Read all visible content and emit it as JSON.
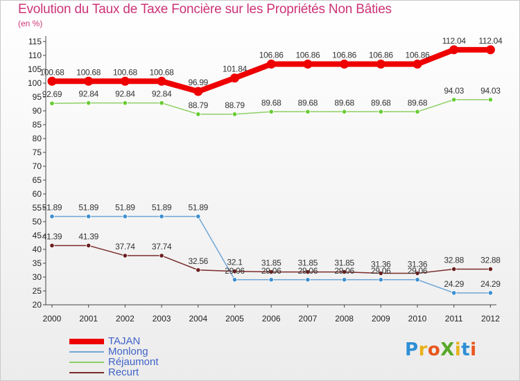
{
  "title": "Evolution du Taux de Taxe Foncière sur les Propriétés Non Bâties",
  "subtitle": "(en %)",
  "logo": {
    "text": "ProXiti",
    "letters": [
      "P",
      "r",
      "o",
      "X",
      "i",
      "t",
      "i"
    ],
    "colors": [
      "#2d8fd6",
      "#e8b21c",
      "#e8561c",
      "#5aa82a",
      "#e8b21c",
      "#2d8fd6",
      "#e8561c"
    ]
  },
  "colors": {
    "axis": "#444444",
    "tick_text": "#222222",
    "label_text": "#333333",
    "accent": "#cc3377"
  },
  "chart_data": {
    "type": "line",
    "title": "Evolution du Taux de Taxe Foncière sur les Propriétés Non Bâties",
    "ylabel": "(en %)",
    "xlabel": "",
    "ylim": [
      20,
      115
    ],
    "yticks": [
      20,
      25,
      30,
      35,
      40,
      45,
      50,
      55,
      60,
      65,
      70,
      75,
      80,
      85,
      90,
      95,
      100,
      105,
      110,
      115
    ],
    "categories": [
      "2000",
      "2001",
      "2002",
      "2003",
      "2004",
      "2005",
      "2006",
      "2007",
      "2008",
      "2009",
      "2010",
      "2011",
      "2012"
    ],
    "legend_position": "bottom-left",
    "series": [
      {
        "name": "TAJAN",
        "color": "#ee0000",
        "line_width": 8,
        "values": [
          100.68,
          100.68,
          100.68,
          100.68,
          96.99,
          101.84,
          106.86,
          106.86,
          106.86,
          106.86,
          106.86,
          112.04,
          112.04
        ],
        "labels": [
          "100.68",
          "100.68",
          "100.68",
          "100.68",
          "96.99",
          "101.84",
          "106.86",
          "106.86",
          "106.86",
          "106.86",
          "106.86",
          "112.04",
          "112.04"
        ]
      },
      {
        "name": "Monlong",
        "color": "#6fa6d6",
        "marker_color": "#3b8fd0",
        "line_width": 1.5,
        "values": [
          51.89,
          51.89,
          51.89,
          51.89,
          51.89,
          29.06,
          29.06,
          29.06,
          29.06,
          29.06,
          29.06,
          24.29,
          24.29
        ],
        "labels": [
          "51.89",
          "51.89",
          "51.89",
          "51.89",
          "51.89",
          "29.06",
          "29.06",
          "29.06",
          "29.06",
          "29.06",
          "29.06",
          "24.29",
          "24.29"
        ]
      },
      {
        "name": "Réjaumont",
        "color": "#8ed064",
        "marker_color": "#66cc33",
        "line_width": 1.5,
        "values": [
          92.69,
          92.84,
          92.84,
          92.84,
          88.79,
          88.79,
          89.68,
          89.68,
          89.68,
          89.68,
          89.68,
          94.03,
          94.03
        ],
        "labels": [
          "92.69",
          "92.84",
          "92.84",
          "92.84",
          "88.79",
          "88.79",
          "89.68",
          "89.68",
          "89.68",
          "89.68",
          "89.68",
          "94.03",
          "94.03"
        ]
      },
      {
        "name": "Recurt",
        "color": "#7a2a2a",
        "marker_color": "#6b1f1f",
        "line_width": 1.5,
        "values": [
          41.39,
          41.39,
          37.74,
          37.74,
          32.56,
          32.1,
          31.85,
          31.85,
          31.85,
          31.36,
          31.36,
          32.88,
          32.88
        ],
        "labels": [
          "41.39",
          "41.39",
          "37.74",
          "37.74",
          "32.56",
          "32.1",
          "31.85",
          "31.85",
          "31.85",
          "31.36",
          "31.36",
          "32.88",
          "32.88"
        ]
      }
    ]
  }
}
